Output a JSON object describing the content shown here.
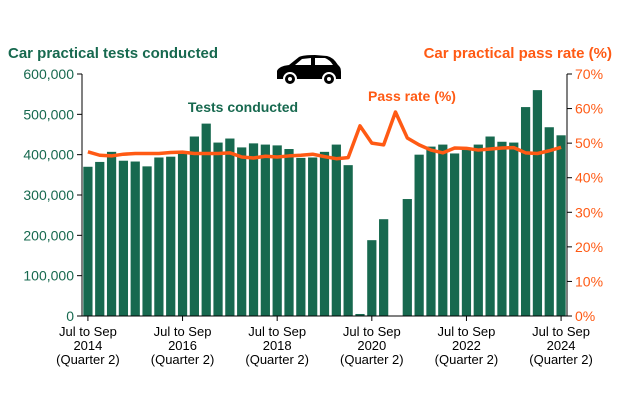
{
  "chart_data": {
    "type": "bar",
    "left_title": "Car practical tests conducted",
    "right_title": "Car practical pass rate (%)",
    "annotations": {
      "bars": "Tests conducted",
      "line": "Pass rate (%)"
    },
    "colors": {
      "bars": "#17694f",
      "line": "#ff5a14",
      "left_text": "#17694f",
      "right_text": "#ff5a14"
    },
    "icon": "car-icon",
    "left_axis": {
      "ylim": [
        0,
        600000
      ],
      "ticks": [
        "0",
        "100,000",
        "200,000",
        "300,000",
        "400,000",
        "500,000",
        "600,000"
      ]
    },
    "right_axis": {
      "ylim": [
        0,
        70
      ],
      "ticks": [
        "0%",
        "10%",
        "20%",
        "30%",
        "40%",
        "50%",
        "60%",
        "70%"
      ]
    },
    "x_tick_labels": [
      [
        "Jul to Sep",
        "2014",
        "(Quarter 2)"
      ],
      [
        "Jul to Sep",
        "2016",
        "(Quarter 2)"
      ],
      [
        "Jul to Sep",
        "2018",
        "(Quarter 2)"
      ],
      [
        "Jul to Sep",
        "2020",
        "(Quarter 2)"
      ],
      [
        "Jul to Sep",
        "2022",
        "(Quarter 2)"
      ],
      [
        "Jul to Sep",
        "2024",
        "(Quarter 2)"
      ]
    ],
    "x_tick_every": 8,
    "series": [
      {
        "name": "Tests conducted",
        "type": "bar",
        "values": [
          370000,
          382000,
          407000,
          385000,
          383000,
          371000,
          393000,
          395000,
          405000,
          445000,
          477000,
          430000,
          440000,
          418000,
          428000,
          425000,
          423000,
          414000,
          392000,
          393000,
          407000,
          425000,
          374000,
          5000,
          188000,
          240000,
          1000,
          290000,
          400000,
          420000,
          425000,
          403000,
          415000,
          425000,
          445000,
          432000,
          430000,
          518000,
          560000,
          468000,
          448000
        ]
      },
      {
        "name": "Pass rate (%)",
        "type": "line",
        "values": [
          47.5,
          46.5,
          46.3,
          46.8,
          47,
          47,
          47,
          47.3,
          47.4,
          47,
          47,
          47,
          47.2,
          46,
          45.7,
          46.2,
          46,
          46.3,
          46.5,
          46.8,
          46.1,
          45.5,
          45.8,
          55,
          50,
          49.5,
          59,
          51.5,
          49.5,
          48,
          47.2,
          48.6,
          48.5,
          48,
          48.3,
          48.6,
          48.7,
          47.2,
          47,
          47.8,
          48.8
        ]
      }
    ]
  }
}
